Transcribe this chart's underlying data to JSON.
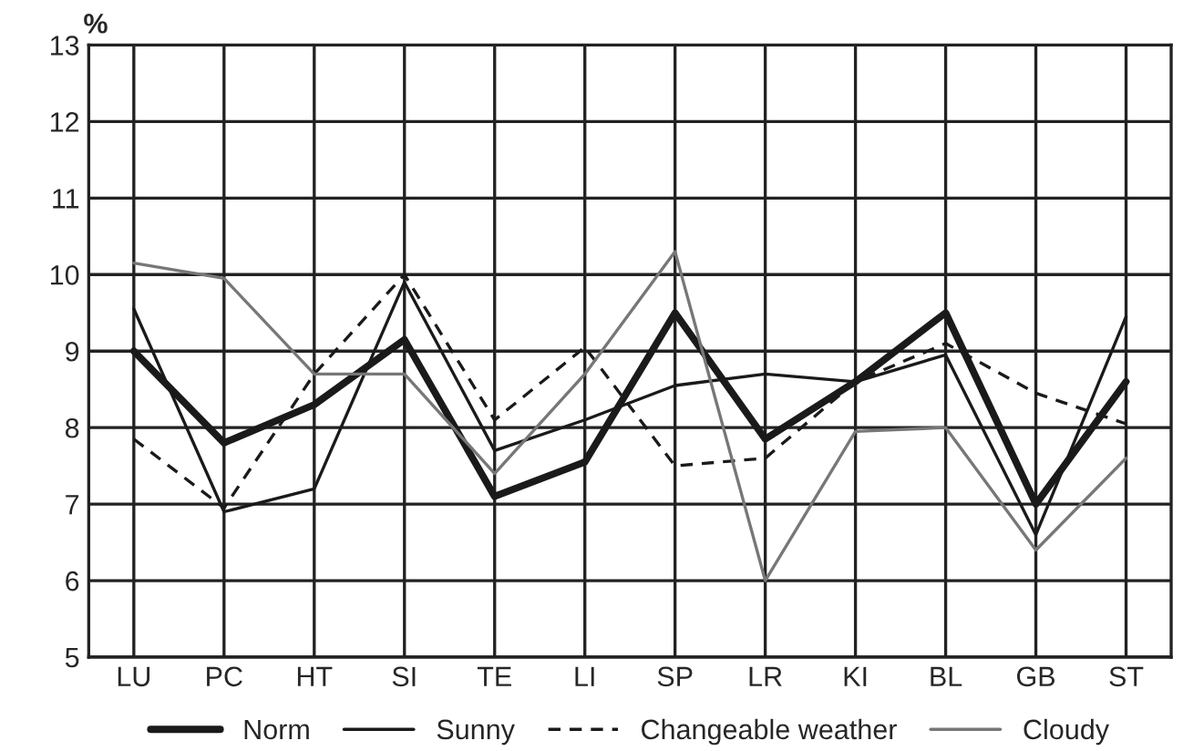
{
  "chart_data": {
    "type": "line",
    "ylabel": "%",
    "categories": [
      "LU",
      "PC",
      "HT",
      "SI",
      "TE",
      "LI",
      "SP",
      "LR",
      "KI",
      "BL",
      "GB",
      "ST"
    ],
    "series": [
      {
        "name": "Norm",
        "color": "#1a1a1a",
        "line_style": "solid",
        "values": [
          9.0,
          7.8,
          8.3,
          9.15,
          7.1,
          7.55,
          9.5,
          7.85,
          8.6,
          9.5,
          7.0,
          8.6
        ]
      },
      {
        "name": "Sunny",
        "color": "#1a1a1a",
        "line_style": "solid",
        "values": [
          9.55,
          6.9,
          7.2,
          9.9,
          7.7,
          8.1,
          8.55,
          8.7,
          8.6,
          8.95,
          6.6,
          9.45
        ]
      },
      {
        "name": "Changeable weather",
        "color": "#1a1a1a",
        "line_style": "dashed",
        "values": [
          7.85,
          6.95,
          8.7,
          10.0,
          8.1,
          9.05,
          7.5,
          7.6,
          8.6,
          9.1,
          8.45,
          8.05
        ]
      },
      {
        "name": "Cloudy",
        "color": "#777777",
        "line_style": "solid",
        "values": [
          10.15,
          9.95,
          8.7,
          8.7,
          7.4,
          8.7,
          10.3,
          6.0,
          7.95,
          8.0,
          6.4,
          7.6
        ]
      }
    ],
    "ylim": [
      5,
      13
    ],
    "yticks": [
      5,
      6,
      7,
      8,
      9,
      10,
      11,
      12,
      13
    ],
    "grid": true,
    "legend": "bottom",
    "marker": "none"
  }
}
